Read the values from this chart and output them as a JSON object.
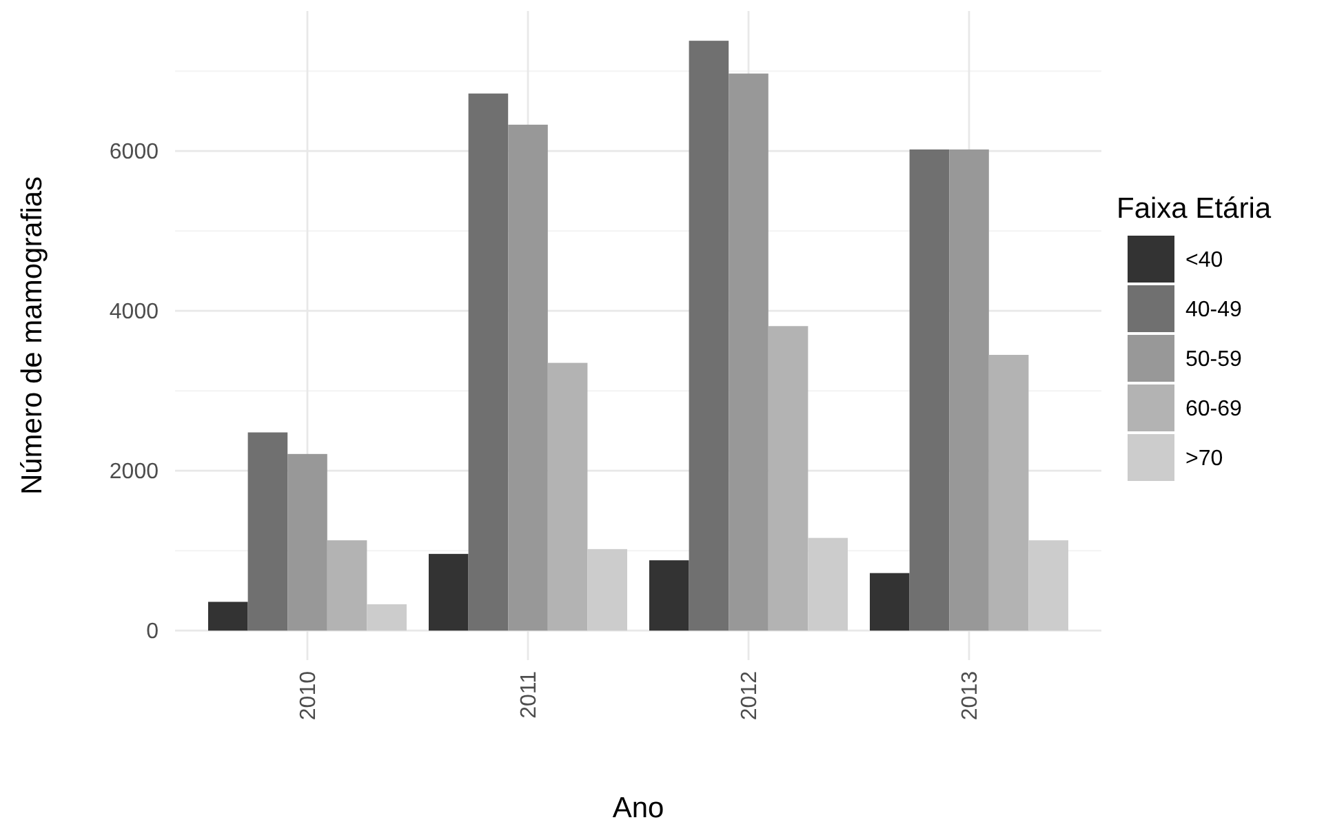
{
  "chart_data": {
    "type": "bar",
    "xlabel": "Ano",
    "ylabel": "Número de mamografias",
    "legend_title": "Faixa Etária",
    "categories": [
      "2010",
      "2011",
      "2012",
      "2013"
    ],
    "series": [
      {
        "name": "<40",
        "color": "#333333",
        "values": [
          360,
          960,
          880,
          720
        ]
      },
      {
        "name": "40-49",
        "color": "#707070",
        "values": [
          2480,
          6720,
          7380,
          6020
        ]
      },
      {
        "name": "50-59",
        "color": "#989898",
        "values": [
          2210,
          6330,
          6970,
          6020
        ]
      },
      {
        "name": "60-69",
        "color": "#b3b3b3",
        "values": [
          1130,
          3350,
          3810,
          3450
        ]
      },
      {
        "name": ">70",
        "color": "#cccccc",
        "values": [
          330,
          1020,
          1160,
          1130
        ]
      }
    ],
    "ylim": [
      -369,
      7752
    ],
    "yticks": [
      0,
      {
        "value": 1000,
        "label": null
      },
      2000,
      {
        "value": 3000,
        "label": null
      },
      4000,
      {
        "value": 5000,
        "label": null
      },
      6000,
      {
        "value": 7000,
        "label": null
      }
    ],
    "grid": true,
    "legend": "right"
  }
}
